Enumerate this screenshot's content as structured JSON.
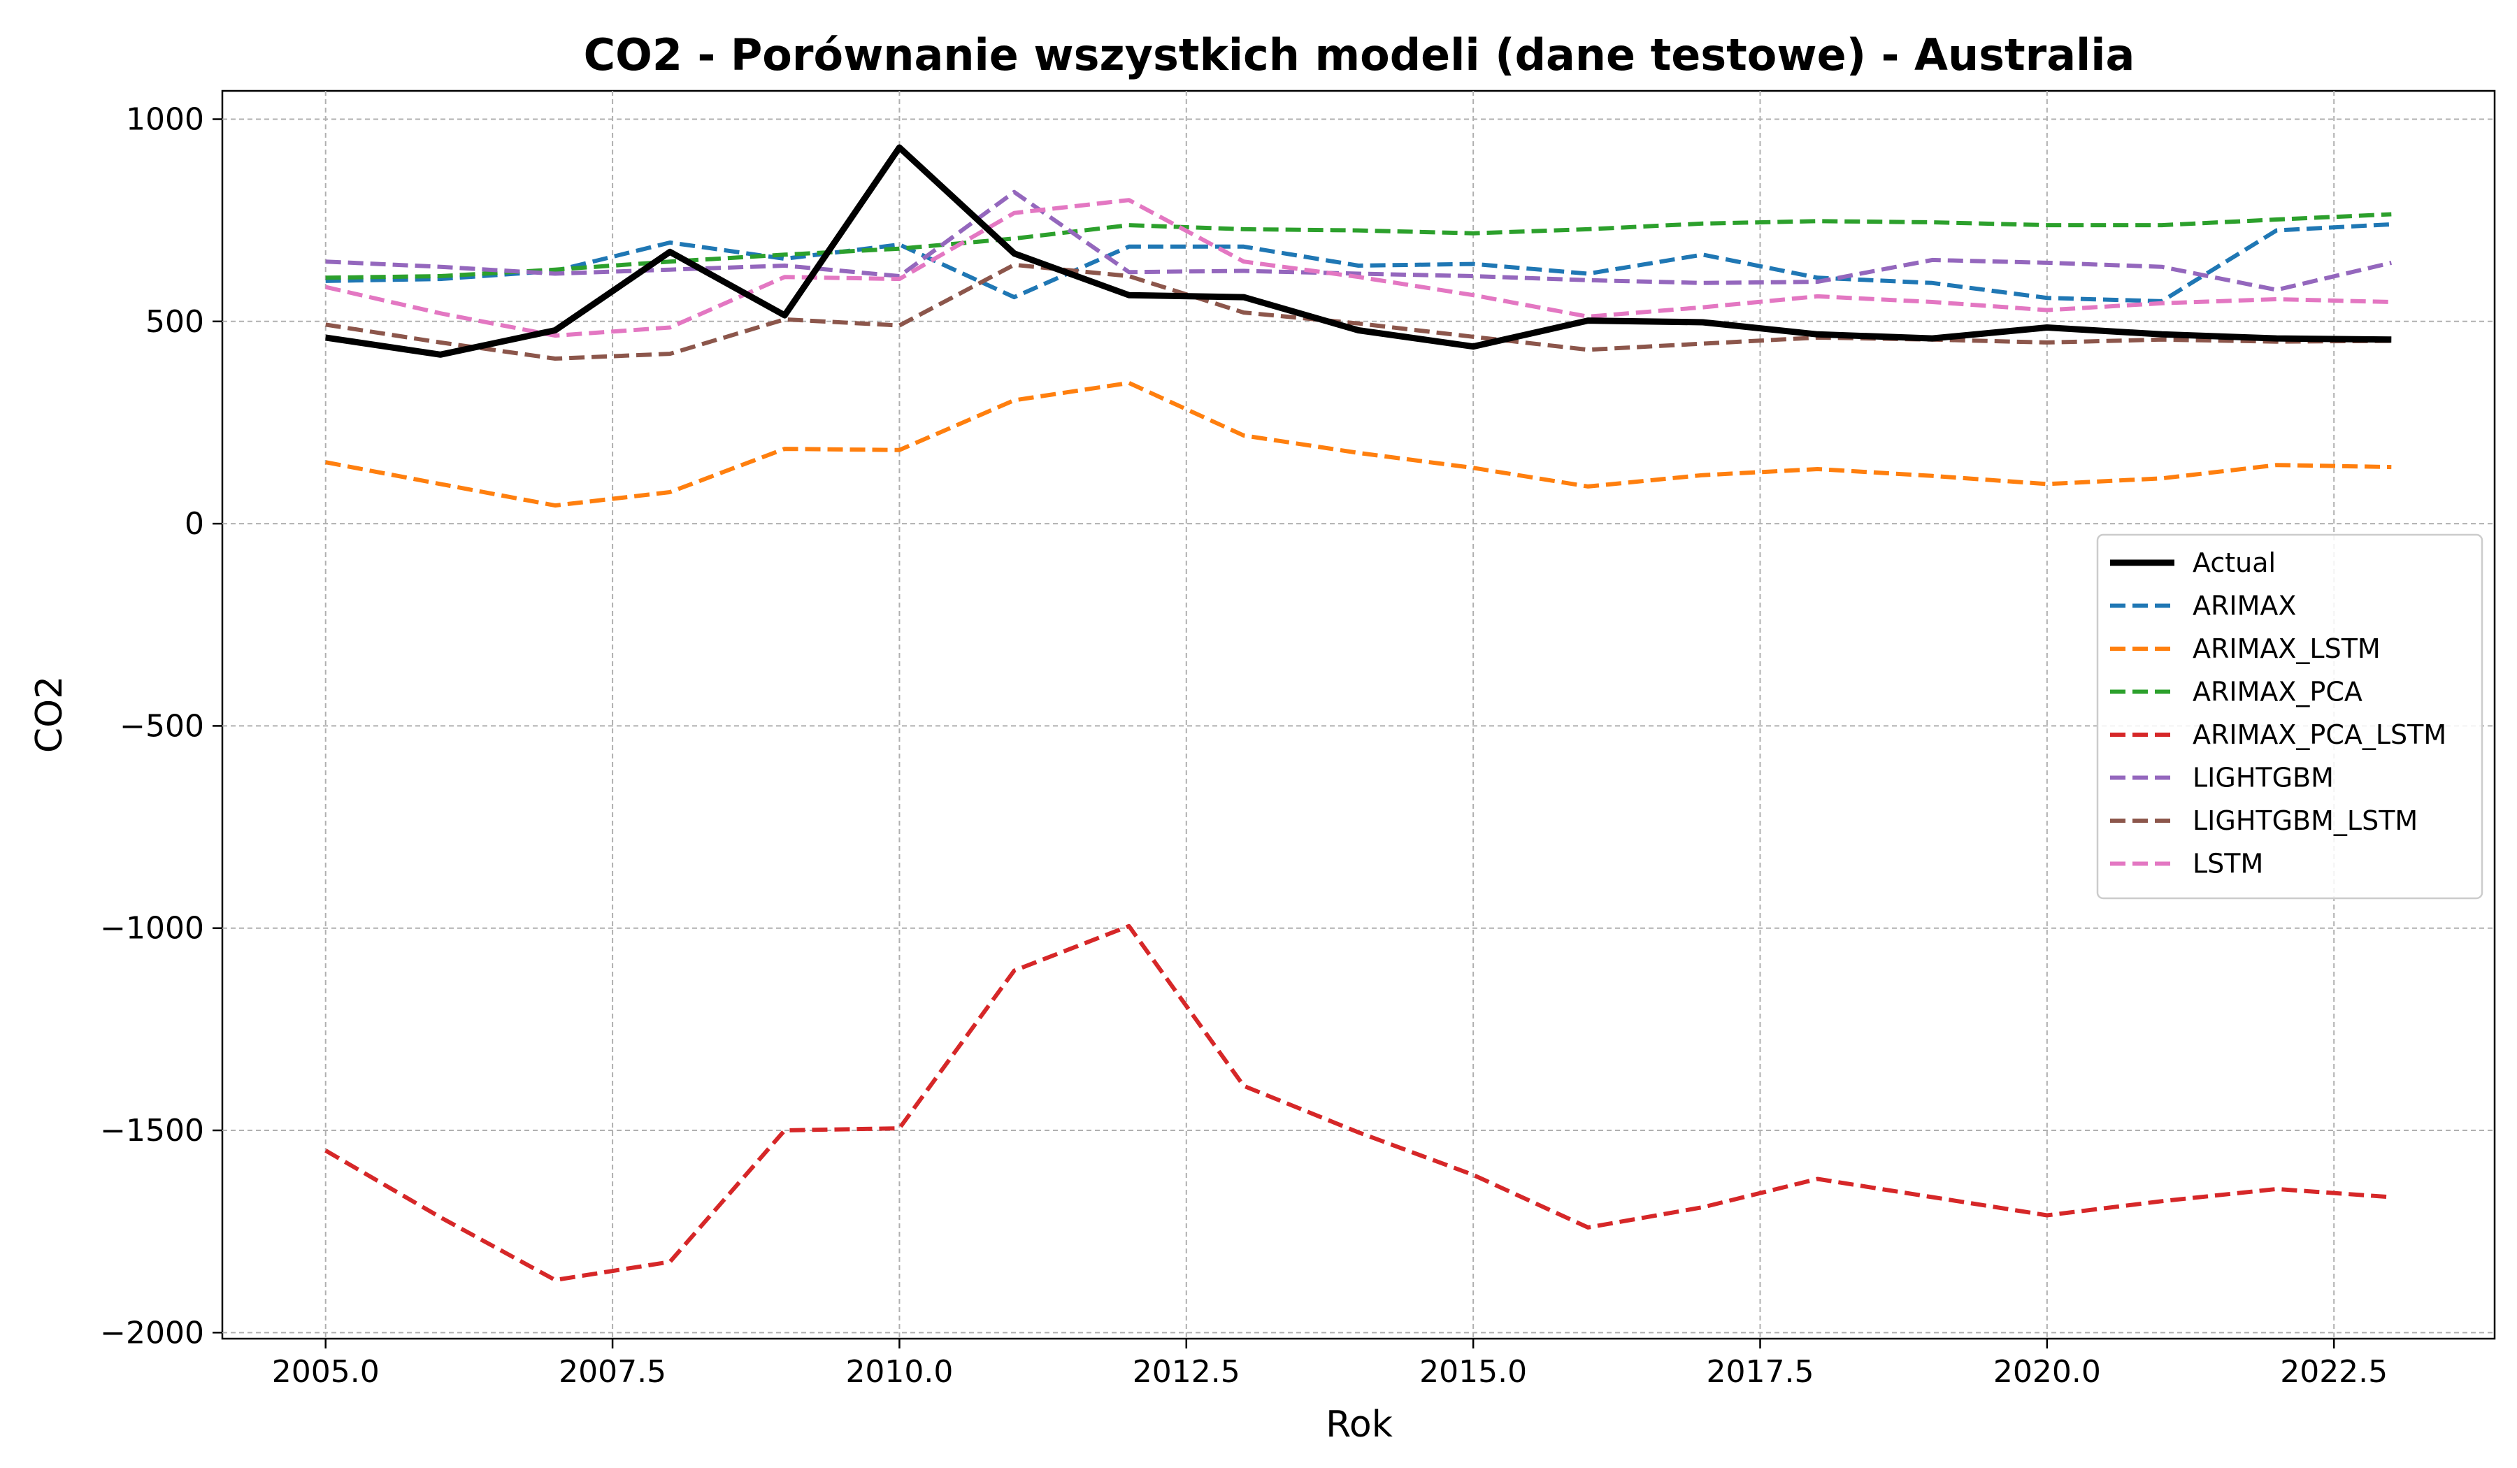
{
  "chart_data": {
    "type": "line",
    "title": "CO2 - Porównanie wszystkich modeli (dane testowe) - Australia",
    "xlabel": "Rok",
    "ylabel": "CO2",
    "xlim": [
      2004.1,
      2023.9
    ],
    "ylim": [
      -2015,
      1070
    ],
    "xticks": [
      2005.0,
      2007.5,
      2010.0,
      2012.5,
      2015.0,
      2017.5,
      2020.0,
      2022.5
    ],
    "xtick_labels": [
      "2005.0",
      "2007.5",
      "2010.0",
      "2012.5",
      "2015.0",
      "2017.5",
      "2020.0",
      "2022.5"
    ],
    "yticks": [
      1000,
      500,
      0,
      -500,
      -1000,
      -1500,
      -2000
    ],
    "ytick_labels": [
      "1000",
      "500",
      "0",
      "−500",
      "−1000",
      "−1500",
      "−2000"
    ],
    "grid": true,
    "legend_position": "center-right",
    "x": [
      2005,
      2006,
      2007,
      2008,
      2009,
      2010,
      2011,
      2012,
      2013,
      2014,
      2015,
      2016,
      2017,
      2018,
      2019,
      2020,
      2021,
      2022,
      2023
    ],
    "series": [
      {
        "name": "Actual",
        "color": "#000000",
        "style": "solid",
        "values": [
          460,
          418,
          478,
          672,
          515,
          930,
          668,
          565,
          560,
          478,
          438,
          502,
          498,
          468,
          458,
          485,
          468,
          458,
          455
        ]
      },
      {
        "name": "ARIMAX",
        "color": "#1f77b4",
        "style": "dashed",
        "values": [
          600,
          605,
          625,
          695,
          655,
          690,
          560,
          685,
          685,
          638,
          642,
          618,
          665,
          608,
          595,
          558,
          550,
          725,
          740
        ]
      },
      {
        "name": "ARIMAX_LSTM",
        "color": "#ff7f0e",
        "style": "dashed",
        "values": [
          152,
          98,
          45,
          78,
          185,
          182,
          305,
          348,
          218,
          175,
          138,
          92,
          120,
          135,
          118,
          98,
          112,
          145,
          140
        ]
      },
      {
        "name": "ARIMAX_PCA",
        "color": "#2ca02c",
        "style": "dashed",
        "values": [
          608,
          612,
          628,
          648,
          665,
          680,
          705,
          738,
          728,
          725,
          718,
          728,
          742,
          748,
          745,
          738,
          738,
          752,
          765
        ]
      },
      {
        "name": "ARIMAX_PCA_LSTM",
        "color": "#d62728",
        "style": "dashed",
        "values": [
          -1550,
          -1715,
          -1870,
          -1825,
          -1500,
          -1495,
          -1105,
          -995,
          -1390,
          -1505,
          -1610,
          -1740,
          -1690,
          -1620,
          -1665,
          -1710,
          -1675,
          -1645,
          -1665
        ]
      },
      {
        "name": "LIGHTGBM",
        "color": "#9467bd",
        "style": "dashed",
        "values": [
          648,
          635,
          618,
          628,
          638,
          612,
          820,
          622,
          625,
          618,
          612,
          602,
          595,
          598,
          652,
          645,
          635,
          578,
          645
        ]
      },
      {
        "name": "LIGHTGBM_LSTM",
        "color": "#8c564b",
        "style": "dashed",
        "values": [
          492,
          448,
          408,
          420,
          505,
          490,
          640,
          612,
          522,
          495,
          462,
          430,
          445,
          460,
          455,
          448,
          455,
          450,
          452
        ]
      },
      {
        "name": "LSTM",
        "color": "#e377c2",
        "style": "dashed",
        "values": [
          585,
          520,
          465,
          485,
          610,
          605,
          768,
          800,
          648,
          610,
          565,
          512,
          535,
          562,
          548,
          528,
          545,
          555,
          548
        ]
      }
    ]
  }
}
